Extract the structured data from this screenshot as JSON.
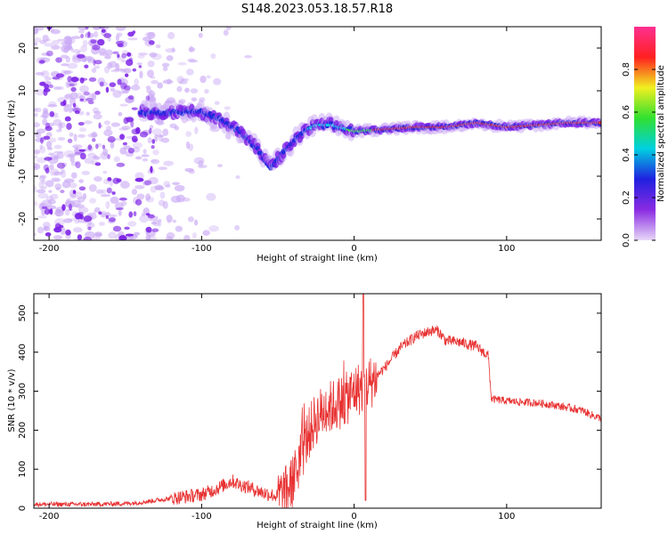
{
  "title": "S148.2023.053.18.57.R18",
  "colors": {
    "snr_line": "#e83232",
    "spectrum_faint": "#c9a8f5",
    "spectrum_purple": "#7a1ee6",
    "spectrum_blue": "#1e2bdc",
    "spectrum_cyan": "#18d3e6",
    "spectrum_green": "#3ef23a",
    "spectrum_red": "#e83232"
  },
  "chart_data": [
    {
      "type": "heatmap",
      "xlabel": "Height of straight line (km)",
      "ylabel": "Frequency (Hz)",
      "xlim": [
        -210,
        162
      ],
      "ylim": [
        -25,
        25
      ],
      "xticks": [
        "-200",
        "-100",
        "0",
        "100"
      ],
      "yticks": [
        "-20",
        "-10",
        "0",
        "10",
        "20"
      ],
      "colorbar": {
        "label": "Normalized spectral amplitude",
        "range": [
          0,
          1
        ],
        "ticks": [
          "0.0",
          "0.2",
          "0.4",
          "0.6",
          "0.8"
        ],
        "colormap": [
          "#e8d8f8",
          "#8a2be2",
          "#2020e0",
          "#00d0e0",
          "#30e030",
          "#f0f020",
          "#ff2020",
          "#ff3090"
        ]
      },
      "ridge": {
        "x": [
          -140,
          -120,
          -100,
          -80,
          -65,
          -55,
          -45,
          -35,
          -25,
          -15,
          -5,
          0,
          20,
          40,
          60,
          80,
          100,
          120,
          140,
          162
        ],
        "freq": [
          5,
          5,
          5,
          2,
          -3,
          -8,
          -4,
          0,
          2,
          2,
          1,
          0.5,
          1,
          1.5,
          1.5,
          2.5,
          1.5,
          2,
          2.5,
          2.5
        ],
        "amplitude": [
          0.35,
          0.4,
          0.35,
          0.3,
          0.3,
          0.3,
          0.35,
          0.4,
          0.5,
          0.55,
          0.6,
          0.7,
          0.95,
          0.95,
          0.95,
          0.95,
          0.95,
          0.95,
          0.9,
          0.9
        ]
      },
      "grid": false
    },
    {
      "type": "line",
      "xlabel": "Height of straight line (km)",
      "ylabel": "SNR (10 * v/v)",
      "xlim": [
        -210,
        162
      ],
      "ylim": [
        0,
        550
      ],
      "xticks": [
        "-200",
        "-100",
        "0",
        "100"
      ],
      "yticks": [
        "0",
        "100",
        "200",
        "300",
        "400",
        "500"
      ],
      "series": [
        {
          "x": [
            -210,
            -190,
            -170,
            -150,
            -140,
            -130,
            -120,
            -110,
            -100,
            -90,
            -80,
            -75,
            -70,
            -60,
            -50,
            -45,
            -40,
            -35,
            -30,
            -25,
            -20,
            -15,
            -10,
            -5,
            0,
            5,
            10,
            20,
            30,
            40,
            50,
            55,
            60,
            70,
            80,
            88,
            90,
            100,
            110,
            120,
            130,
            140,
            150,
            155,
            162
          ],
          "y": [
            10,
            10,
            10,
            12,
            15,
            20,
            25,
            30,
            35,
            50,
            70,
            60,
            55,
            40,
            30,
            40,
            70,
            130,
            190,
            230,
            250,
            260,
            270,
            280,
            300,
            310,
            320,
            360,
            410,
            440,
            455,
            455,
            430,
            425,
            415,
            390,
            280,
            275,
            272,
            270,
            265,
            258,
            250,
            240,
            230
          ]
        }
      ],
      "grid": false
    }
  ]
}
